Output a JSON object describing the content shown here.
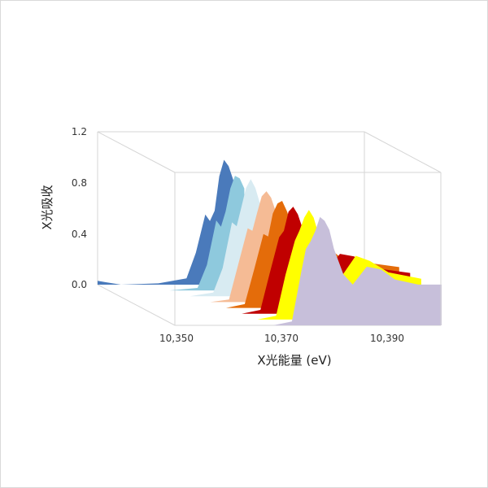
{
  "chart_data": {
    "type": "area",
    "title": "",
    "xlabel": "X光能量 (eV)",
    "ylabel": "X光吸收",
    "x_ticks": [
      "10,350",
      "10,370",
      "10,390"
    ],
    "y_ticks": [
      "1.2",
      "0.8",
      "0.4",
      "0.0"
    ],
    "xlim": [
      10343,
      10400
    ],
    "ylim": [
      0,
      1.2
    ],
    "grid": false,
    "legend": "none",
    "series": [
      {
        "color": "#4a7abb",
        "points": [
          [
            10343,
            0.03
          ],
          [
            10348,
            0.0
          ],
          [
            10356,
            0.01
          ],
          [
            10362,
            0.05
          ],
          [
            10364,
            0.25
          ],
          [
            10366,
            0.55
          ],
          [
            10367,
            0.5
          ],
          [
            10368,
            0.58
          ],
          [
            10369,
            0.85
          ],
          [
            10370,
            0.98
          ],
          [
            10371,
            0.93
          ],
          [
            10372,
            0.82
          ]
        ]
      },
      {
        "color": "#8ec9dd",
        "points": [
          [
            10343,
            0.0
          ],
          [
            10356,
            0.0
          ],
          [
            10362,
            0.02
          ],
          [
            10364,
            0.2
          ],
          [
            10366,
            0.55
          ],
          [
            10367,
            0.5
          ],
          [
            10368,
            0.62
          ],
          [
            10369,
            0.8
          ],
          [
            10370,
            0.9
          ],
          [
            10371,
            0.88
          ],
          [
            10372,
            0.8
          ]
        ]
      },
      {
        "color": "#d8ebf2",
        "points": [
          [
            10343,
            0.0
          ],
          [
            10358,
            0.0
          ],
          [
            10363,
            0.03
          ],
          [
            10365,
            0.22
          ],
          [
            10367,
            0.58
          ],
          [
            10368,
            0.55
          ],
          [
            10369,
            0.7
          ],
          [
            10370,
            0.85
          ],
          [
            10371,
            0.92
          ],
          [
            10372,
            0.85
          ],
          [
            10374,
            0.6
          ],
          [
            10376,
            0.52
          ],
          [
            10380,
            0.58
          ],
          [
            10384,
            0.45
          ]
        ]
      },
      {
        "color": "#f5bb95",
        "points": [
          [
            10343,
            0.0
          ],
          [
            10360,
            0.0
          ],
          [
            10364,
            0.02
          ],
          [
            10366,
            0.3
          ],
          [
            10368,
            0.58
          ],
          [
            10369,
            0.56
          ],
          [
            10370,
            0.7
          ],
          [
            10371,
            0.83
          ],
          [
            10372,
            0.87
          ],
          [
            10373,
            0.82
          ],
          [
            10375,
            0.6
          ],
          [
            10377,
            0.48
          ],
          [
            10381,
            0.55
          ],
          [
            10385,
            0.42
          ]
        ]
      },
      {
        "color": "#e46c0a",
        "points": [
          [
            10343,
            0.0
          ],
          [
            10361,
            0.0
          ],
          [
            10365,
            0.03
          ],
          [
            10367,
            0.3
          ],
          [
            10369,
            0.58
          ],
          [
            10370,
            0.56
          ],
          [
            10371,
            0.74
          ],
          [
            10372,
            0.82
          ],
          [
            10373,
            0.84
          ],
          [
            10374,
            0.76
          ],
          [
            10376,
            0.55
          ],
          [
            10378,
            0.42
          ],
          [
            10382,
            0.5
          ],
          [
            10386,
            0.38
          ],
          [
            10398,
            0.32
          ]
        ]
      },
      {
        "color": "#c00000",
        "points": [
          [
            10343,
            0.0
          ],
          [
            10362,
            0.0
          ],
          [
            10366,
            0.03
          ],
          [
            10368,
            0.32
          ],
          [
            10370,
            0.6
          ],
          [
            10371,
            0.65
          ],
          [
            10372,
            0.8
          ],
          [
            10373,
            0.84
          ],
          [
            10374,
            0.78
          ],
          [
            10376,
            0.56
          ],
          [
            10378,
            0.4
          ],
          [
            10380,
            0.33
          ],
          [
            10383,
            0.47
          ],
          [
            10386,
            0.45
          ],
          [
            10390,
            0.36
          ],
          [
            10398,
            0.32
          ]
        ]
      },
      {
        "color": "#ffff00",
        "points": [
          [
            10343,
            0.0
          ],
          [
            10363,
            0.0
          ],
          [
            10367,
            0.03
          ],
          [
            10369,
            0.35
          ],
          [
            10371,
            0.62
          ],
          [
            10372,
            0.7
          ],
          [
            10373,
            0.8
          ],
          [
            10374,
            0.86
          ],
          [
            10375,
            0.8
          ],
          [
            10377,
            0.55
          ],
          [
            10379,
            0.38
          ],
          [
            10381,
            0.34
          ],
          [
            10384,
            0.5
          ],
          [
            10387,
            0.46
          ],
          [
            10391,
            0.37
          ],
          [
            10398,
            0.32
          ]
        ]
      },
      {
        "color": "#c7bfda",
        "points": [
          [
            10343,
            0.0
          ],
          [
            10364,
            0.0
          ],
          [
            10368,
            0.03
          ],
          [
            10370,
            0.42
          ],
          [
            10371,
            0.6
          ],
          [
            10372,
            0.66
          ],
          [
            10373,
            0.74
          ],
          [
            10374,
            0.85
          ],
          [
            10375,
            0.82
          ],
          [
            10376,
            0.75
          ],
          [
            10377,
            0.6
          ],
          [
            10379,
            0.4
          ],
          [
            10381,
            0.32
          ],
          [
            10384,
            0.46
          ],
          [
            10387,
            0.44
          ],
          [
            10390,
            0.36
          ],
          [
            10395,
            0.32
          ],
          [
            10400,
            0.32
          ]
        ]
      }
    ]
  }
}
